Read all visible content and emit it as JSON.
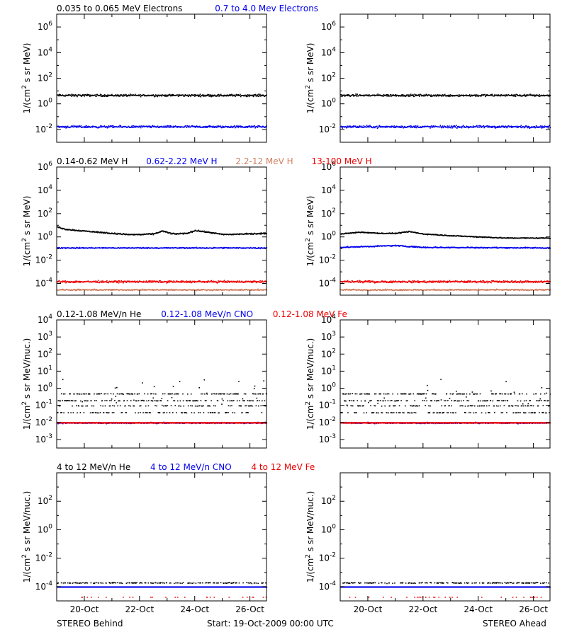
{
  "colors": {
    "black": "#000000",
    "blue": "#0000ee",
    "salmon": "#d08060",
    "red": "#ee0000"
  },
  "footer": {
    "left": "STEREO Behind",
    "center": "Start: 19-Oct-2009 00:00 UTC",
    "right": "STEREO Ahead"
  },
  "rows": [
    {
      "legends": [
        {
          "text": "0.035 to 0.065 MeV Electrons",
          "color": "#000000"
        },
        {
          "text": "0.7 to 4.0 Mev Electrons",
          "color": "#0000ee"
        }
      ]
    },
    {
      "legends": [
        {
          "text": "0.14-0.62 MeV H",
          "color": "#000000"
        },
        {
          "text": "0.62-2.22 MeV H",
          "color": "#0000ee"
        },
        {
          "text": "2.2-12 MeV H",
          "color": "#d08060"
        },
        {
          "text": "13-100 MeV H",
          "color": "#ee0000"
        }
      ]
    },
    {
      "legends": [
        {
          "text": "0.12-1.08 MeV/n He",
          "color": "#000000"
        },
        {
          "text": "0.12-1.08 MeV/n CNO",
          "color": "#0000ee"
        },
        {
          "text": "0.12-1.08 MeV Fe",
          "color": "#ee0000"
        }
      ]
    },
    {
      "legends": [
        {
          "text": "4 to 12 MeV/n He",
          "color": "#000000"
        },
        {
          "text": "4 to 12 MeV/n CNO",
          "color": "#0000ee"
        },
        {
          "text": "4 to 12 MeV Fe",
          "color": "#ee0000"
        }
      ]
    }
  ],
  "chart_data": [
    {
      "type": "scatter",
      "panel": "STEREO Behind electrons",
      "ylabel": "1/(cm^2 s sr MeV)",
      "yscale": "log",
      "ylim_exp": [
        -3,
        7
      ],
      "yticks_exp": [
        -2,
        0,
        2,
        4,
        6
      ],
      "xlim_days": [
        19,
        26.6
      ],
      "xticks": [
        "20-Oct",
        "22-Oct",
        "24-Oct",
        "26-Oct"
      ],
      "series": [
        {
          "name": "0.035 to 0.065 MeV Electrons",
          "color": "#000000",
          "level_exp": 0.7,
          "spread": 0.12
        },
        {
          "name": "0.7 to 4.0 Mev Electrons",
          "color": "#0000ee",
          "level_exp": -1.75,
          "spread": 0.12
        }
      ]
    },
    {
      "type": "scatter",
      "panel": "STEREO Ahead electrons",
      "ylabel": "1/(cm^2 s sr MeV)",
      "yscale": "log",
      "ylim_exp": [
        -3,
        7
      ],
      "yticks_exp": [
        -2,
        0,
        2,
        4,
        6
      ],
      "xlim_days": [
        19,
        26.6
      ],
      "xticks": [
        "20-Oct",
        "22-Oct",
        "24-Oct",
        "26-Oct"
      ],
      "series": [
        {
          "name": "0.035 to 0.065 MeV Electrons",
          "color": "#000000",
          "level_exp": 0.7,
          "spread": 0.12
        },
        {
          "name": "0.7 to 4.0 Mev Electrons",
          "color": "#0000ee",
          "level_exp": -1.75,
          "spread": 0.13
        }
      ]
    },
    {
      "type": "scatter",
      "panel": "STEREO Behind protons",
      "ylabel": "1/(cm^2 s sr MeV)",
      "yscale": "log",
      "ylim_exp": [
        -5,
        6
      ],
      "yticks_exp": [
        -4,
        -2,
        0,
        2,
        4,
        6
      ],
      "xlim_days": [
        19,
        26.6
      ],
      "xticks": [
        "20-Oct",
        "22-Oct",
        "24-Oct",
        "26-Oct"
      ],
      "series": [
        {
          "name": "0.14-0.62 MeV H",
          "color": "#000000",
          "level_exp": 0.3,
          "spread": 0.08,
          "profile": [
            [
              19,
              0.9
            ],
            [
              19.3,
              0.7
            ],
            [
              20,
              0.55
            ],
            [
              21,
              0.35
            ],
            [
              21.6,
              0.25
            ],
            [
              22,
              0.25
            ],
            [
              22.5,
              0.3
            ],
            [
              22.8,
              0.55
            ],
            [
              23.2,
              0.3
            ],
            [
              23.7,
              0.35
            ],
            [
              24,
              0.6
            ],
            [
              24.6,
              0.4
            ],
            [
              25,
              0.25
            ],
            [
              26.6,
              0.35
            ]
          ]
        },
        {
          "name": "0.62-2.22 MeV H",
          "color": "#0000ee",
          "level_exp": -0.9,
          "spread": 0.07
        },
        {
          "name": "2.2-12 MeV H",
          "color": "#d08060",
          "level_exp": -4.5,
          "spread": 0.08
        },
        {
          "name": "13-100 MeV H",
          "color": "#ee0000",
          "level_exp": -3.8,
          "spread": 0.12
        }
      ]
    },
    {
      "type": "scatter",
      "panel": "STEREO Ahead protons",
      "ylabel": "1/(cm^2 s sr MeV)",
      "yscale": "log",
      "ylim_exp": [
        -5,
        6
      ],
      "yticks_exp": [
        -4,
        -2,
        0,
        2,
        4,
        6
      ],
      "xlim_days": [
        19,
        26.6
      ],
      "xticks": [
        "20-Oct",
        "22-Oct",
        "24-Oct",
        "26-Oct"
      ],
      "series": [
        {
          "name": "0.14-0.62 MeV H",
          "color": "#000000",
          "level_exp": 0.3,
          "spread": 0.06,
          "profile": [
            [
              19,
              0.3
            ],
            [
              19.7,
              0.45
            ],
            [
              20.5,
              0.35
            ],
            [
              21,
              0.35
            ],
            [
              21.5,
              0.5
            ],
            [
              22,
              0.3
            ],
            [
              23,
              0.15
            ],
            [
              24,
              0.05
            ],
            [
              25,
              -0.05
            ],
            [
              26.6,
              -0.05
            ]
          ]
        },
        {
          "name": "0.62-2.22 MeV H",
          "color": "#0000ee",
          "level_exp": -0.85,
          "spread": 0.07,
          "profile": [
            [
              19,
              -0.85
            ],
            [
              21,
              -0.7
            ],
            [
              22,
              -0.85
            ],
            [
              26.6,
              -0.9
            ]
          ]
        },
        {
          "name": "2.2-12 MeV H",
          "color": "#d08060",
          "level_exp": -4.5,
          "spread": 0.08
        },
        {
          "name": "13-100 MeV H",
          "color": "#ee0000",
          "level_exp": -3.8,
          "spread": 0.12
        }
      ]
    },
    {
      "type": "scatter",
      "panel": "STEREO Behind suprathermal ions",
      "ylabel": "1/(cm^2 s sr MeV/nuc.)",
      "yscale": "log",
      "ylim_exp": [
        -3.5,
        4
      ],
      "yticks_exp": [
        -3,
        -2,
        -1,
        0,
        1,
        2,
        3,
        4
      ],
      "xlim_days": [
        19,
        26.6
      ],
      "xticks": [
        "20-Oct",
        "22-Oct",
        "24-Oct",
        "26-Oct"
      ],
      "series": [
        {
          "name": "0.12-1.08 MeV/n He",
          "color": "#000000",
          "level_exp": -1.0,
          "spread": 0.25
        },
        {
          "name": "0.12-1.08 MeV/n CNO",
          "color": "#0000ee",
          "level_exp": -2.0,
          "spread": 0.05
        },
        {
          "name": "0.12-1.08 MeV Fe",
          "color": "#ee0000",
          "level_exp": -2.0,
          "spread": 0.02
        }
      ]
    },
    {
      "type": "scatter",
      "panel": "STEREO Ahead suprathermal ions",
      "ylabel": "1/(cm^2 s sr MeV/nuc.)",
      "yscale": "log",
      "ylim_exp": [
        -3.5,
        4
      ],
      "yticks_exp": [
        -3,
        -2,
        -1,
        0,
        1,
        2,
        3,
        4
      ],
      "xlim_days": [
        19,
        26.6
      ],
      "xticks": [
        "20-Oct",
        "22-Oct",
        "24-Oct",
        "26-Oct"
      ],
      "series": [
        {
          "name": "0.12-1.08 MeV/n He",
          "color": "#000000",
          "level_exp": -1.0,
          "spread": 0.25
        },
        {
          "name": "0.12-1.08 MeV/n CNO",
          "color": "#0000ee",
          "level_exp": -2.0,
          "spread": 0.05
        },
        {
          "name": "0.12-1.08 MeV Fe",
          "color": "#ee0000",
          "level_exp": -2.0,
          "spread": 0.02
        }
      ]
    },
    {
      "type": "scatter",
      "panel": "STEREO Behind energetic ions",
      "ylabel": "1/(cm^2 s sr MeV/nuc.)",
      "yscale": "log",
      "ylim_exp": [
        -5,
        4
      ],
      "yticks_exp": [
        -4,
        -2,
        0,
        2
      ],
      "xlim_days": [
        19,
        26.6
      ],
      "xticks": [
        "20-Oct",
        "22-Oct",
        "24-Oct",
        "26-Oct"
      ],
      "series": [
        {
          "name": "4 to 12 MeV/n He",
          "color": "#000000",
          "level_exp": -3.7,
          "spread": 0.05
        },
        {
          "name": "4 to 12 MeV/n CNO",
          "color": "#0000ee",
          "level_exp": -4.0,
          "spread": 0.0
        },
        {
          "name": "4 to 12 MeV Fe",
          "color": "#ee0000",
          "level_exp": -4.7,
          "spread": 0.0
        }
      ]
    },
    {
      "type": "scatter",
      "panel": "STEREO Ahead energetic ions",
      "ylabel": "1/(cm^2 s sr MeV/nuc.)",
      "yscale": "log",
      "ylim_exp": [
        -5,
        4
      ],
      "yticks_exp": [
        -4,
        -2,
        0,
        2
      ],
      "xlim_days": [
        19,
        26.6
      ],
      "xticks": [
        "20-Oct",
        "22-Oct",
        "24-Oct",
        "26-Oct"
      ],
      "series": [
        {
          "name": "4 to 12 MeV/n He",
          "color": "#000000",
          "level_exp": -3.7,
          "spread": 0.05
        },
        {
          "name": "4 to 12 MeV/n CNO",
          "color": "#0000ee",
          "level_exp": -4.0,
          "spread": 0.0
        },
        {
          "name": "4 to 12 MeV Fe",
          "color": "#ee0000",
          "level_exp": -4.7,
          "spread": 0.0
        }
      ]
    }
  ]
}
